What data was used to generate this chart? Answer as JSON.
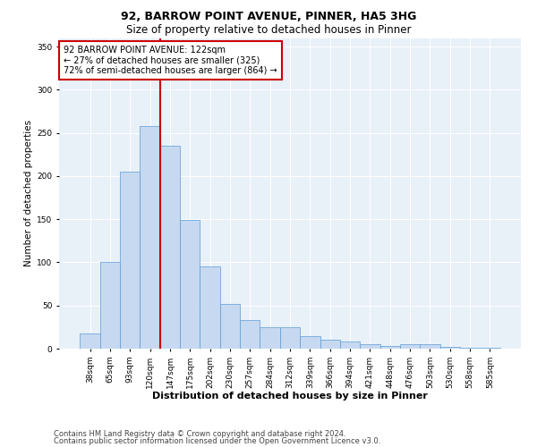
{
  "title1": "92, BARROW POINT AVENUE, PINNER, HA5 3HG",
  "title2": "Size of property relative to detached houses in Pinner",
  "xlabel": "Distribution of detached houses by size in Pinner",
  "ylabel": "Number of detached properties",
  "bar_labels": [
    "38sqm",
    "65sqm",
    "93sqm",
    "120sqm",
    "147sqm",
    "175sqm",
    "202sqm",
    "230sqm",
    "257sqm",
    "284sqm",
    "312sqm",
    "339sqm",
    "366sqm",
    "394sqm",
    "421sqm",
    "448sqm",
    "476sqm",
    "503sqm",
    "530sqm",
    "558sqm",
    "585sqm"
  ],
  "bar_values": [
    18,
    100,
    205,
    258,
    235,
    149,
    95,
    52,
    33,
    25,
    25,
    15,
    10,
    8,
    5,
    3,
    5,
    5,
    2,
    1,
    1
  ],
  "bar_color": "#c6d9f0",
  "bar_edge_color": "#5b9bd5",
  "vline_color": "#cc0000",
  "annotation_text": "92 BARROW POINT AVENUE: 122sqm\n← 27% of detached houses are smaller (325)\n72% of semi-detached houses are larger (864) →",
  "annotation_box_color": "white",
  "annotation_box_edge_color": "#cc0000",
  "footer1": "Contains HM Land Registry data © Crown copyright and database right 2024.",
  "footer2": "Contains public sector information licensed under the Open Government Licence v3.0.",
  "background_color": "#e8f0f8",
  "ylim": [
    0,
    360
  ],
  "yticks": [
    0,
    50,
    100,
    150,
    200,
    250,
    300,
    350
  ],
  "title1_fontsize": 9,
  "title2_fontsize": 8.5,
  "xlabel_fontsize": 8,
  "ylabel_fontsize": 7.5,
  "tick_fontsize": 6.5,
  "annotation_fontsize": 7,
  "footer_fontsize": 6
}
